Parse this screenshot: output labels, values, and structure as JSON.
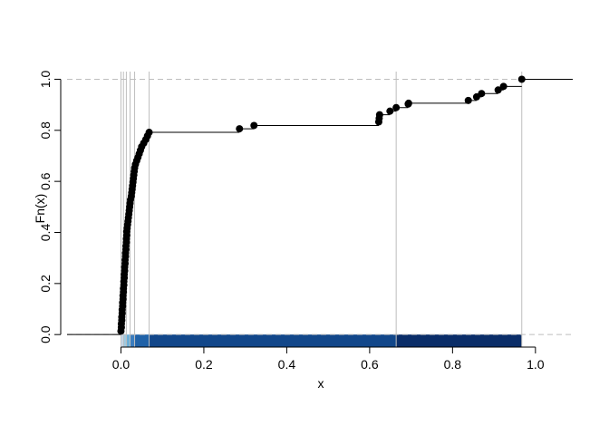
{
  "chart_data": {
    "type": "ecdf",
    "xlabel": "x",
    "ylabel": "Fn(x)",
    "xlim": [
      -0.13,
      1.09
    ],
    "ylim": [
      -0.01,
      1.03
    ],
    "x_ticks": [
      0.0,
      0.2,
      0.4,
      0.6,
      0.8,
      1.0
    ],
    "x_tick_labels": [
      "0.0",
      "0.2",
      "0.4",
      "0.6",
      "0.8",
      "1.0"
    ],
    "y_ticks": [
      0.0,
      0.2,
      0.4,
      0.6,
      0.8,
      1.0
    ],
    "y_tick_labels": [
      "0.0",
      "0.2",
      "0.4",
      "0.6",
      "0.8",
      "1.0"
    ],
    "reference_lines_y": [
      0,
      1
    ],
    "vertical_lines_x": [
      0.0,
      0.006,
      0.013,
      0.022,
      0.033,
      0.068,
      0.664,
      0.967
    ],
    "band_colors": [
      "#c6dbef",
      "#9ecae1",
      "#6baed6",
      "#3a7dbf",
      "#2062a8",
      "#12478a",
      "#0a2d68"
    ],
    "color_bands": [
      {
        "from": 0.0,
        "to": 0.006,
        "color": "#c6dbef"
      },
      {
        "from": 0.006,
        "to": 0.013,
        "color": "#9ecae1"
      },
      {
        "from": 0.013,
        "to": 0.022,
        "color": "#6baed6"
      },
      {
        "from": 0.022,
        "to": 0.033,
        "color": "#3a7dbf"
      },
      {
        "from": 0.033,
        "to": 0.068,
        "color": "#2062a8"
      },
      {
        "from": 0.068,
        "to": 0.664,
        "color": "#12478a"
      },
      {
        "from": 0.664,
        "to": 0.967,
        "color": "#0a2d68"
      }
    ],
    "points": [
      [
        0.0,
        0.014
      ],
      [
        0.001,
        0.028
      ],
      [
        0.001,
        0.042
      ],
      [
        0.002,
        0.056
      ],
      [
        0.002,
        0.069
      ],
      [
        0.003,
        0.083
      ],
      [
        0.003,
        0.097
      ],
      [
        0.004,
        0.111
      ],
      [
        0.004,
        0.125
      ],
      [
        0.005,
        0.139
      ],
      [
        0.005,
        0.153
      ],
      [
        0.006,
        0.167
      ],
      [
        0.006,
        0.181
      ],
      [
        0.007,
        0.194
      ],
      [
        0.007,
        0.208
      ],
      [
        0.008,
        0.222
      ],
      [
        0.008,
        0.236
      ],
      [
        0.009,
        0.25
      ],
      [
        0.009,
        0.264
      ],
      [
        0.01,
        0.278
      ],
      [
        0.01,
        0.292
      ],
      [
        0.011,
        0.306
      ],
      [
        0.011,
        0.319
      ],
      [
        0.012,
        0.333
      ],
      [
        0.012,
        0.347
      ],
      [
        0.013,
        0.361
      ],
      [
        0.013,
        0.375
      ],
      [
        0.014,
        0.389
      ],
      [
        0.014,
        0.403
      ],
      [
        0.015,
        0.417
      ],
      [
        0.016,
        0.431
      ],
      [
        0.017,
        0.444
      ],
      [
        0.018,
        0.458
      ],
      [
        0.019,
        0.472
      ],
      [
        0.02,
        0.486
      ],
      [
        0.021,
        0.5
      ],
      [
        0.022,
        0.514
      ],
      [
        0.023,
        0.528
      ],
      [
        0.025,
        0.542
      ],
      [
        0.026,
        0.556
      ],
      [
        0.027,
        0.569
      ],
      [
        0.028,
        0.583
      ],
      [
        0.029,
        0.597
      ],
      [
        0.03,
        0.611
      ],
      [
        0.031,
        0.625
      ],
      [
        0.032,
        0.639
      ],
      [
        0.033,
        0.653
      ],
      [
        0.035,
        0.667
      ],
      [
        0.038,
        0.681
      ],
      [
        0.041,
        0.694
      ],
      [
        0.044,
        0.708
      ],
      [
        0.047,
        0.722
      ],
      [
        0.05,
        0.736
      ],
      [
        0.055,
        0.75
      ],
      [
        0.06,
        0.764
      ],
      [
        0.064,
        0.778
      ],
      [
        0.068,
        0.792
      ],
      [
        0.286,
        0.806
      ],
      [
        0.321,
        0.819
      ],
      [
        0.622,
        0.833
      ],
      [
        0.623,
        0.847
      ],
      [
        0.624,
        0.861
      ],
      [
        0.649,
        0.875
      ],
      [
        0.664,
        0.889
      ],
      [
        0.693,
        0.903
      ],
      [
        0.694,
        0.906
      ],
      [
        0.838,
        0.917
      ],
      [
        0.858,
        0.931
      ],
      [
        0.87,
        0.944
      ],
      [
        0.91,
        0.958
      ],
      [
        0.923,
        0.972
      ],
      [
        0.967,
        1.0
      ]
    ]
  }
}
